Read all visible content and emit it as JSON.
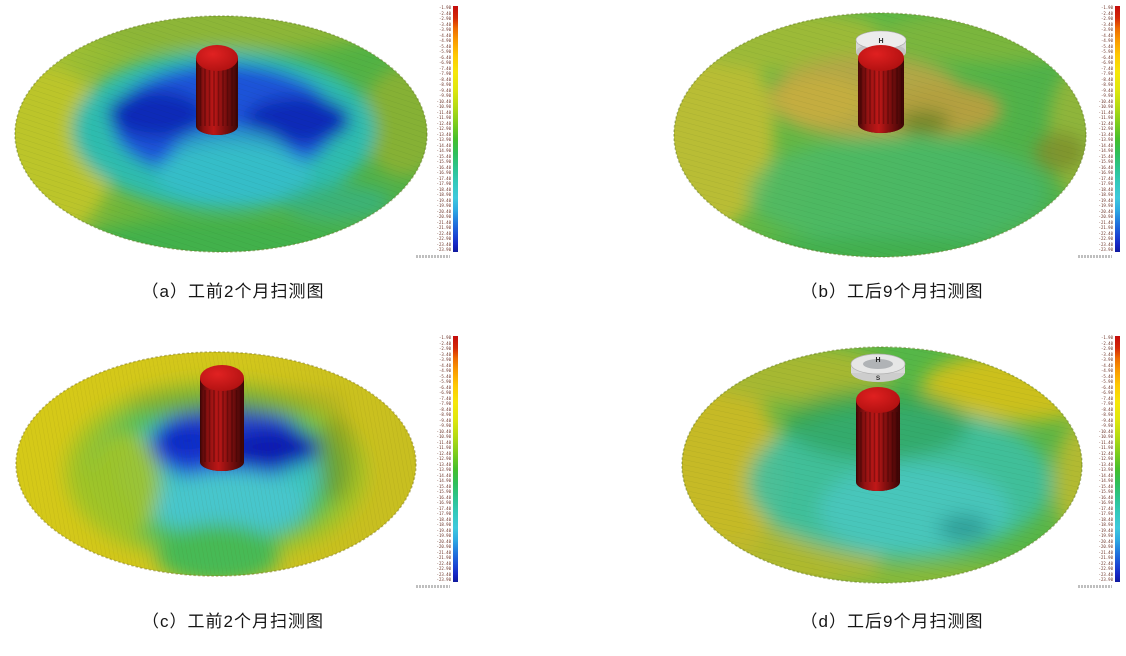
{
  "figure": {
    "panels": [
      {
        "id": "a",
        "caption": "（a）工前2个月扫测图"
      },
      {
        "id": "b",
        "caption": "（b）工后9个月扫测图",
        "pile_cap_label": "H"
      },
      {
        "id": "c",
        "caption": "（c）工前2个月扫测图"
      },
      {
        "id": "d",
        "caption": "（d）工后9个月扫测图",
        "marker_top_label": "H",
        "marker_front_label": "S"
      }
    ]
  },
  "colorbar": {
    "orientation": "vertical",
    "direction": "red (shallow/high) at top to dark blue (deep) at bottom",
    "top_color": "#c40c0c",
    "bottom_color": "#101a9e",
    "ticks": [
      "-1.90",
      "-2.40",
      "-2.90",
      "-3.40",
      "-3.90",
      "-4.40",
      "-4.90",
      "-5.40",
      "-5.90",
      "-6.40",
      "-6.90",
      "-7.40",
      "-7.90",
      "-8.40",
      "-8.90",
      "-9.40",
      "-9.90",
      "-10.40",
      "-10.90",
      "-11.40",
      "-11.90",
      "-12.40",
      "-12.90",
      "-13.40",
      "-13.90",
      "-14.40",
      "-14.90",
      "-15.40",
      "-15.90",
      "-16.40",
      "-16.90",
      "-17.40",
      "-17.90",
      "-18.40",
      "-18.90",
      "-19.40",
      "-19.90",
      "-20.40",
      "-20.90",
      "-21.40",
      "-21.90",
      "-22.40",
      "-22.90",
      "-23.40",
      "-23.90"
    ],
    "ticks_note": "tick numerals are sub-3px in the source image and not legible; values above are visual placeholders"
  },
  "chart_data": {
    "type": "heatmap",
    "note": "Four 3D multibeam-sonar seabed surfaces around a red monopile; elevation/depth encoded with a rainbow palette (red=high, yellow/green=mid, cyan/blue=deep scour). Colorbar at right of each panel.",
    "legend_position": "right",
    "panels": [
      {
        "label": "a",
        "title": "（a）工前2个月扫测图",
        "pattern": "deep blue scour basin ringing the pile, cyan inner mound, green mid-field, yellow-green outer rim"
      },
      {
        "label": "b",
        "title": "（b）工后9个月扫测图",
        "pattern": "uniform green seabed, tan/olive backfill mound around pile, olive-yellow west rim, pile cap marked H"
      },
      {
        "label": "c",
        "title": "（c）工前2个月扫测图",
        "pattern": "large irregular scour pit with dark-blue core beside pile set in flat yellow seabed"
      },
      {
        "label": "d",
        "title": "（d）工后9个月扫测图",
        "pattern": "smooth green-teal seabed with yellow rim, no scour pit; floating survey ring (H/S) above pile"
      }
    ]
  }
}
